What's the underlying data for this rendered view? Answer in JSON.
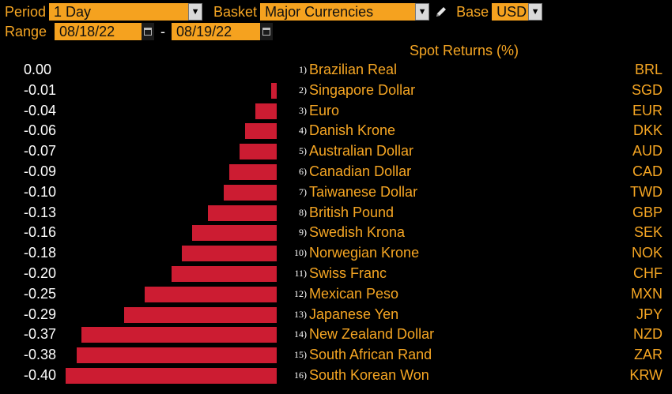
{
  "toolbar": {
    "period_label": "Period",
    "period_value": "1 Day",
    "basket_label": "Basket",
    "basket_value": "Major Currencies",
    "base_label": "Base",
    "base_value": "USD",
    "range_label": "Range",
    "range_start": "08/18/22",
    "range_sep": "-",
    "range_end": "08/19/22"
  },
  "chart_data": {
    "type": "bar",
    "title": "Spot Returns (%)",
    "orientation": "horizontal",
    "bar_color": "#cc1c32",
    "rows": [
      {
        "rank": "1)",
        "name": "Brazilian Real",
        "code": "BRL",
        "value": 0.0,
        "label": "0.00"
      },
      {
        "rank": "2)",
        "name": "Singapore Dollar",
        "code": "SGD",
        "value": -0.01,
        "label": "-0.01"
      },
      {
        "rank": "3)",
        "name": "Euro",
        "code": "EUR",
        "value": -0.04,
        "label": "-0.04"
      },
      {
        "rank": "4)",
        "name": "Danish Krone",
        "code": "DKK",
        "value": -0.06,
        "label": "-0.06"
      },
      {
        "rank": "5)",
        "name": "Australian Dollar",
        "code": "AUD",
        "value": -0.07,
        "label": "-0.07"
      },
      {
        "rank": "6)",
        "name": "Canadian Dollar",
        "code": "CAD",
        "value": -0.09,
        "label": "-0.09"
      },
      {
        "rank": "7)",
        "name": "Taiwanese Dollar",
        "code": "TWD",
        "value": -0.1,
        "label": "-0.10"
      },
      {
        "rank": "8)",
        "name": "British Pound",
        "code": "GBP",
        "value": -0.13,
        "label": "-0.13"
      },
      {
        "rank": "9)",
        "name": "Swedish Krona",
        "code": "SEK",
        "value": -0.16,
        "label": "-0.16"
      },
      {
        "rank": "10)",
        "name": "Norwegian Krone",
        "code": "NOK",
        "value": -0.18,
        "label": "-0.18"
      },
      {
        "rank": "11)",
        "name": "Swiss Franc",
        "code": "CHF",
        "value": -0.2,
        "label": "-0.20"
      },
      {
        "rank": "12)",
        "name": "Mexican Peso",
        "code": "MXN",
        "value": -0.25,
        "label": "-0.25"
      },
      {
        "rank": "13)",
        "name": "Japanese Yen",
        "code": "JPY",
        "value": -0.29,
        "label": "-0.29"
      },
      {
        "rank": "14)",
        "name": "New Zealand Dollar",
        "code": "NZD",
        "value": -0.37,
        "label": "-0.37"
      },
      {
        "rank": "15)",
        "name": "South African Rand",
        "code": "ZAR",
        "value": -0.38,
        "label": "-0.38"
      },
      {
        "rank": "16)",
        "name": "South Korean Won",
        "code": "KRW",
        "value": -0.4,
        "label": "-0.40"
      }
    ]
  }
}
